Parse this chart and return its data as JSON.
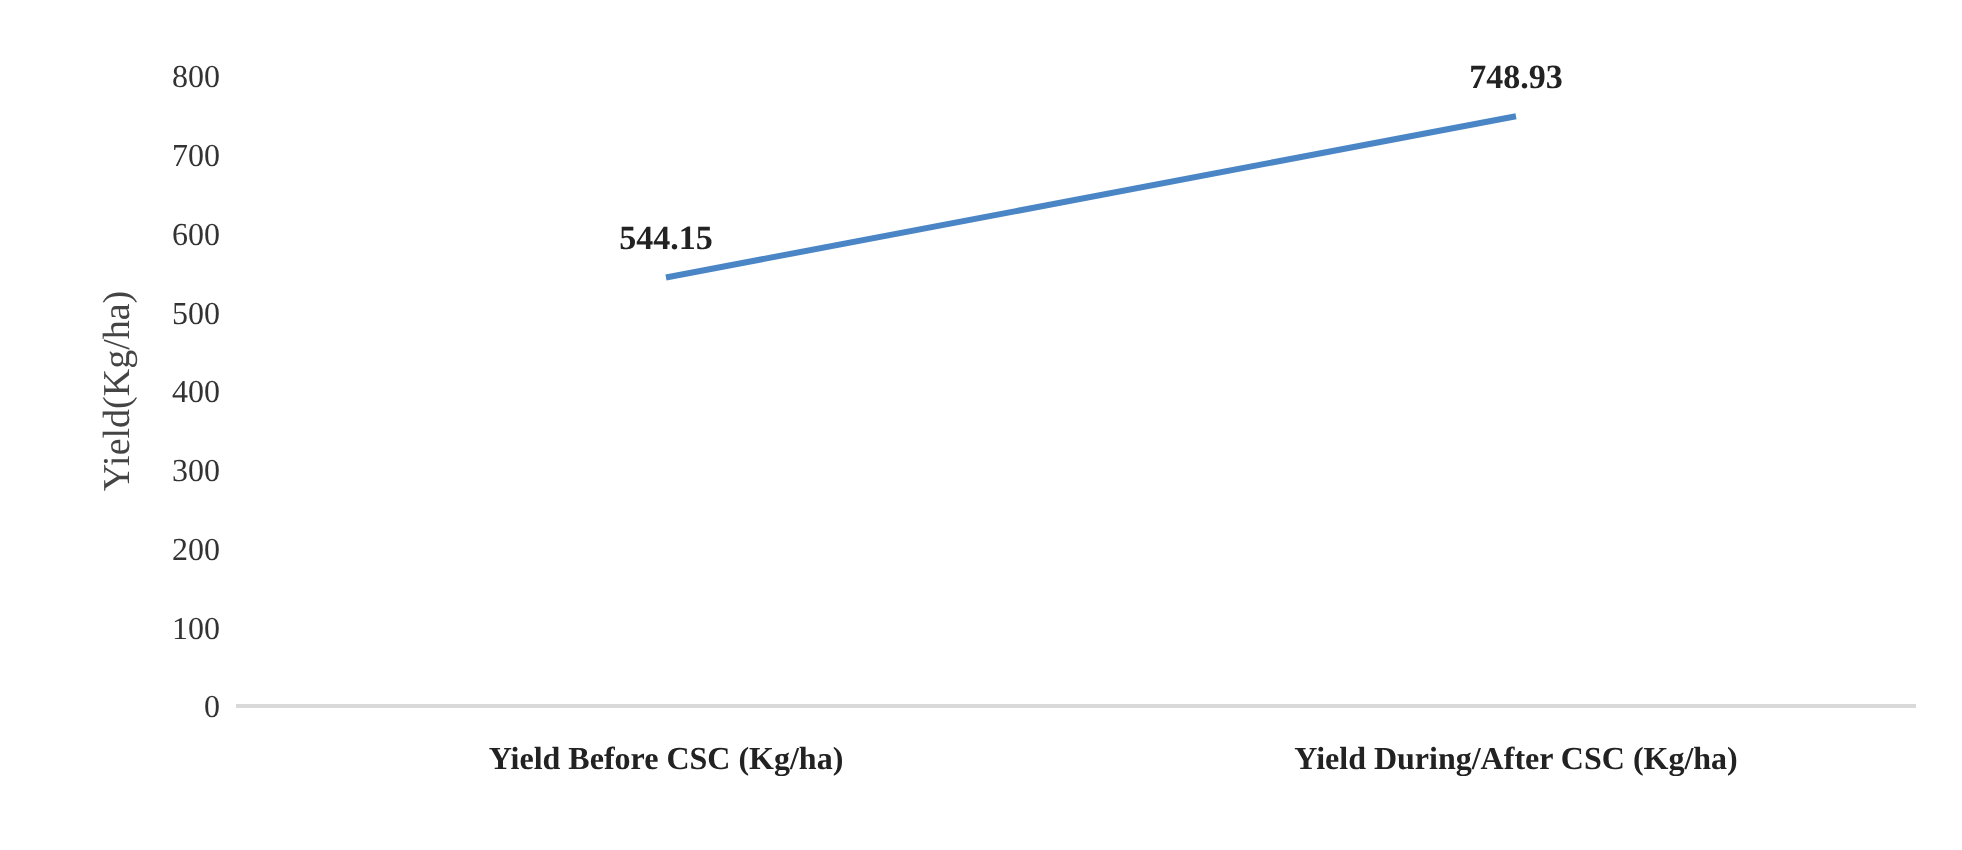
{
  "chart_data": {
    "type": "line",
    "categories": [
      "Yield Before CSC (Kg/ha)",
      "Yield During/After CSC (Kg/ha)"
    ],
    "series": [
      {
        "color": "#4a86c5",
        "values": [
          544.15,
          748.93
        ]
      }
    ],
    "ylabel": "Yield(Kg/ha)",
    "ylim": [
      0,
      800
    ],
    "yticks": [
      0,
      100,
      200,
      300,
      400,
      500,
      600,
      700,
      800
    ],
    "data_labels": true,
    "grid": false,
    "marker": "none",
    "line_style": "solid"
  }
}
